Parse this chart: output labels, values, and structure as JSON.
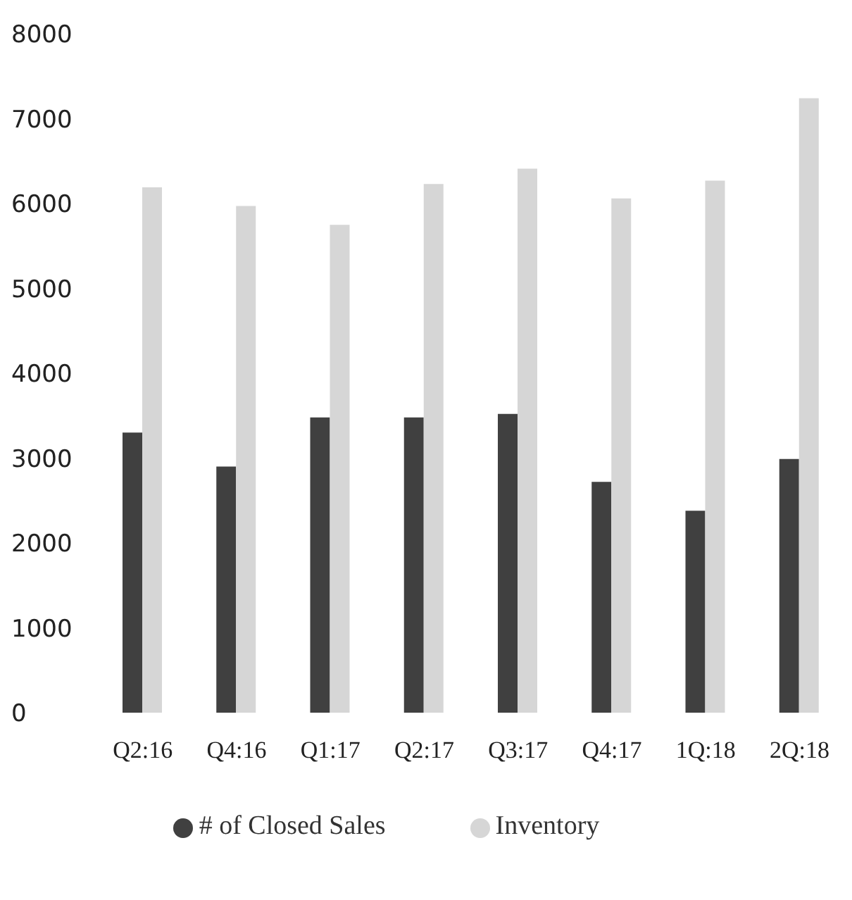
{
  "chart_data": {
    "type": "bar",
    "categories": [
      "Q2:16",
      "Q4:16",
      "Q1:17",
      "Q2:17",
      "Q3:17",
      "Q4:17",
      "1Q:18",
      "2Q:18"
    ],
    "series": [
      {
        "name": "# of Closed Sales",
        "color": "#404040",
        "values": [
          3300,
          2900,
          3480,
          3480,
          3520,
          2720,
          2380,
          2990
        ]
      },
      {
        "name": "Inventory",
        "color": "#d6d6d6",
        "values": [
          6190,
          5970,
          5750,
          6230,
          6410,
          6060,
          6270,
          7240
        ]
      }
    ],
    "ylim": [
      0,
      8000
    ],
    "yticks": [
      0,
      1000,
      2000,
      3000,
      4000,
      5000,
      6000,
      7000,
      8000
    ],
    "grid": false,
    "legend": "bottom"
  }
}
